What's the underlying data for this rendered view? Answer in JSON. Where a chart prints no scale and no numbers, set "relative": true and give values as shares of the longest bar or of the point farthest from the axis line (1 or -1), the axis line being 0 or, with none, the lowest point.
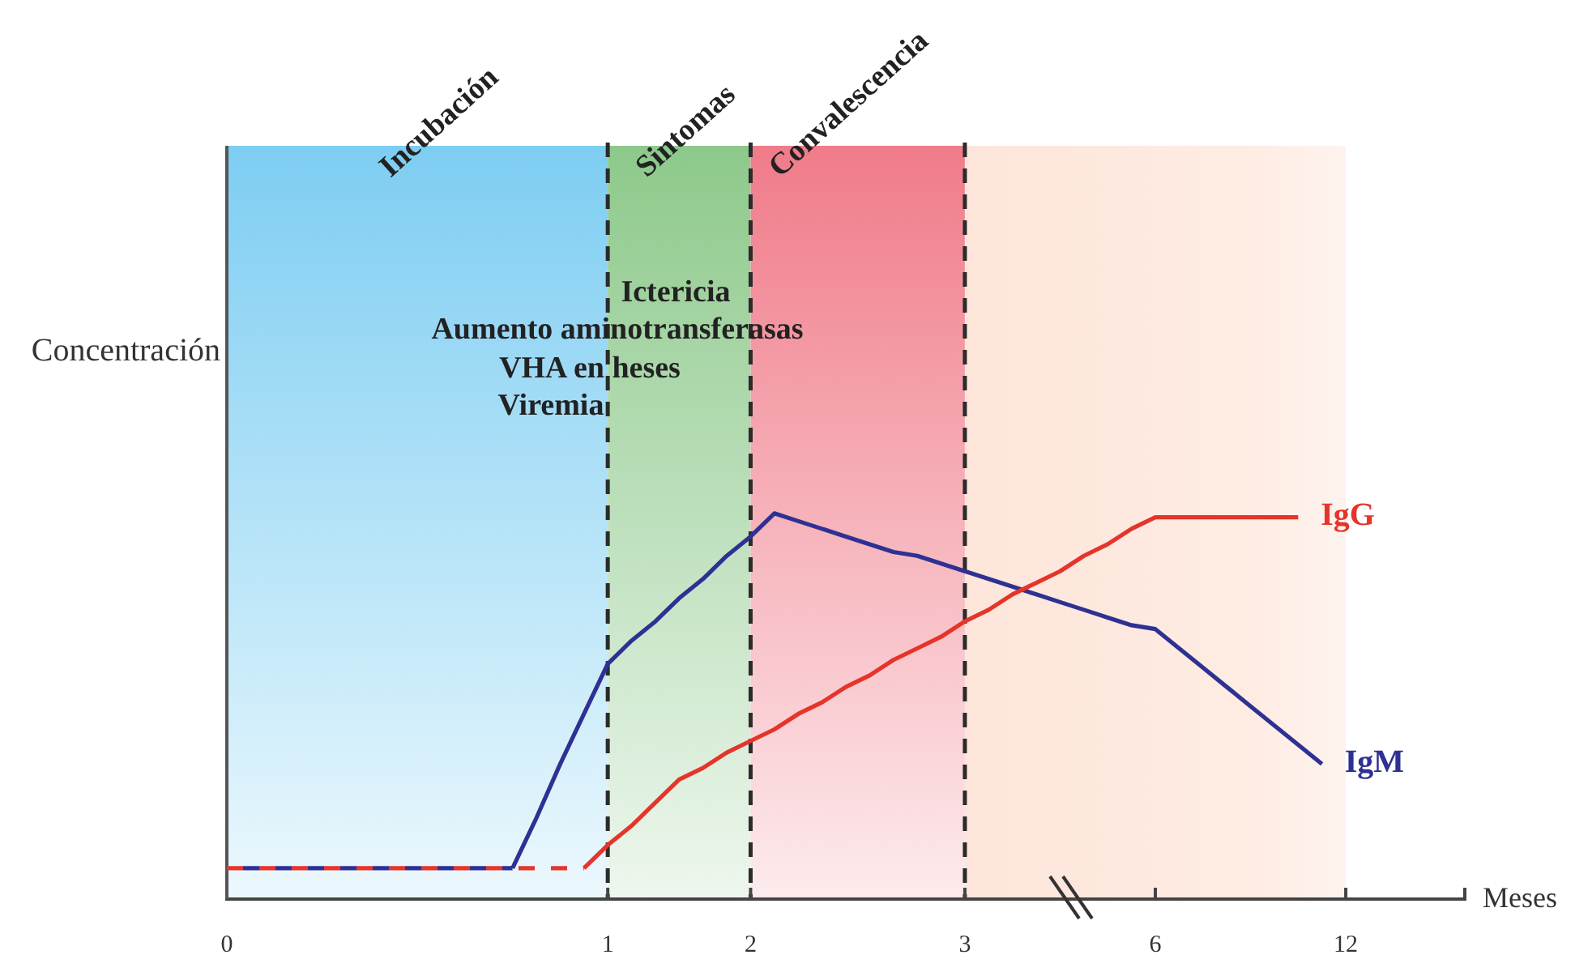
{
  "chart_data": {
    "type": "line",
    "relative": true,
    "xlabel": "Meses",
    "ylabel": "Concentración",
    "categories": [
      "0",
      null,
      null,
      null,
      null,
      null,
      null,
      null,
      null,
      null,
      null,
      null,
      null,
      null,
      null,
      null,
      "1",
      null,
      null,
      null,
      null,
      null,
      "2",
      null,
      null,
      null,
      null,
      null,
      null,
      null,
      null,
      "3",
      null,
      null,
      null,
      null,
      null,
      null,
      null,
      "6",
      null,
      null,
      null,
      null,
      null,
      null,
      null,
      "12",
      null,
      null,
      null,
      null,
      null
    ],
    "series": [
      {
        "color": "#e5352b",
        "line_style": "dashed",
        "values": [
          0.08,
          0.08,
          0.08,
          0.08,
          0.08,
          0.08,
          0.08,
          0.08,
          0.08,
          0.08,
          0.08,
          0.08,
          0.08,
          0.08,
          0.08,
          0.08,
          null,
          null,
          null,
          null,
          null,
          null,
          null,
          null,
          null,
          null,
          null,
          null,
          null,
          null,
          null,
          null,
          null,
          null,
          null,
          null,
          null,
          null,
          null,
          null,
          null,
          null,
          null,
          null,
          null,
          null,
          null,
          null,
          null,
          null,
          null,
          null,
          null
        ]
      },
      {
        "color": "#2e3192",
        "line_style": "dashed",
        "values": [
          0.08,
          0.08,
          0.08,
          0.08,
          0.08,
          0.08,
          0.08,
          0.08,
          0.08,
          0.08,
          0.08,
          0.08,
          0.08,
          null,
          null,
          null,
          null,
          null,
          null,
          null,
          null,
          null,
          null,
          null,
          null,
          null,
          null,
          null,
          null,
          null,
          null,
          null,
          null,
          null,
          null,
          null,
          null,
          null,
          null,
          null,
          null,
          null,
          null,
          null,
          null,
          null,
          null,
          null,
          null,
          null,
          null,
          null,
          null
        ]
      },
      {
        "name": "IgM",
        "color": "#2e3192",
        "values": [
          null,
          null,
          null,
          null,
          null,
          null,
          null,
          null,
          null,
          null,
          null,
          null,
          0.08,
          0.21,
          0.35,
          0.48,
          0.61,
          0.67,
          0.72,
          0.78,
          0.83,
          0.89,
          0.94,
          1,
          0.98,
          0.96,
          0.94,
          0.92,
          0.9,
          0.89,
          0.87,
          0.85,
          0.83,
          0.81,
          0.79,
          0.77,
          0.75,
          0.73,
          0.71,
          0.7,
          0.65,
          0.6,
          0.55,
          0.5,
          0.45,
          0.4,
          0.35,
          null,
          null,
          null,
          null,
          null,
          null
        ]
      },
      {
        "name": "IgG",
        "color": "#e5352b",
        "values": [
          null,
          null,
          null,
          null,
          null,
          null,
          null,
          null,
          null,
          null,
          null,
          null,
          null,
          null,
          null,
          0.08,
          0.14,
          0.19,
          0.25,
          0.31,
          0.34,
          0.38,
          0.41,
          0.44,
          0.48,
          0.51,
          0.55,
          0.58,
          0.62,
          0.65,
          0.68,
          0.72,
          0.75,
          0.79,
          0.82,
          0.85,
          0.89,
          0.92,
          0.96,
          0.99,
          0.99,
          0.99,
          0.99,
          0.99,
          0.99,
          0.99,
          null,
          null,
          null,
          null,
          null,
          null,
          null
        ]
      }
    ],
    "bands": [
      {
        "axis": "x",
        "from": "0",
        "to": "1",
        "label": "Incubación",
        "color": "#7dcdf2"
      },
      {
        "axis": "x",
        "from": "1",
        "to": "2",
        "label": "Sintomas",
        "color": "#8dc98b"
      },
      {
        "axis": "x",
        "from": "2",
        "to": "3",
        "label": "Convalescencia",
        "color": "#f07b89"
      },
      {
        "axis": "x",
        "from": "3",
        "to": "12",
        "color": "#fde5da"
      }
    ],
    "ref_lines": [
      {
        "axis": "x",
        "value": "1",
        "color": "#2b2b2b",
        "line_style": "dashed"
      },
      {
        "axis": "x",
        "value": "2",
        "color": "#2b2b2b",
        "line_style": "dashed"
      },
      {
        "axis": "x",
        "value": "3",
        "color": "#2b2b2b",
        "line_style": "dashed"
      }
    ],
    "annotations": [
      "Ictericia",
      "Aumento aminotransferasas",
      "VHA en heses",
      "Viremia"
    ]
  }
}
